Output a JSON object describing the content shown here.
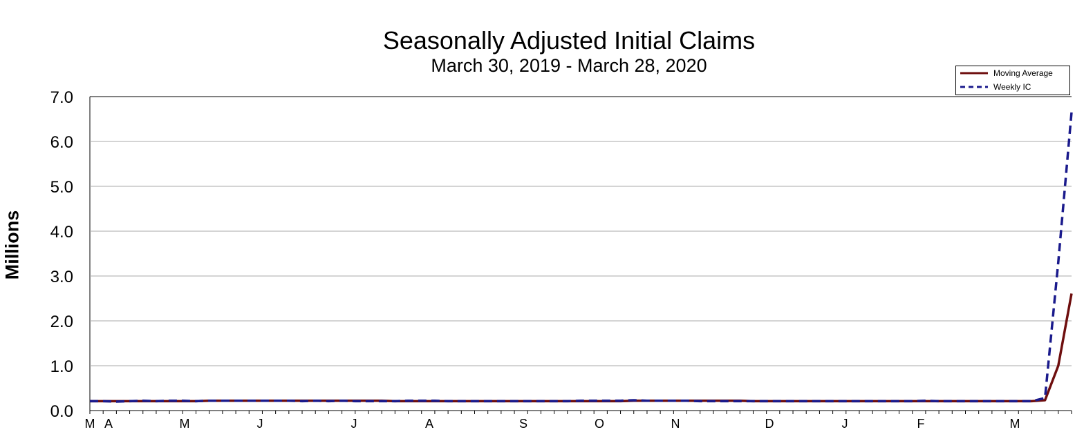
{
  "title": "Seasonally Adjusted Initial Claims",
  "subtitle": "March 30, 2019 - March 28, 2020",
  "colors": {
    "moving_average": "#6e0e0e",
    "weekly": "#1a1a8c",
    "grid": "#a8a8a8"
  },
  "chart_data": {
    "type": "line",
    "title": "Seasonally Adjusted Initial Claims",
    "subtitle": "March 30, 2019 - March 28, 2020",
    "ylabel": "Millions",
    "xlabel": "",
    "ylim": [
      0,
      7.0
    ],
    "y_ticks": [
      "0.0",
      "1.0",
      "2.0",
      "3.0",
      "4.0",
      "5.0",
      "6.0",
      "7.0"
    ],
    "x_tick_labels": [
      "M",
      "A",
      "M",
      "J",
      "J",
      "A",
      "S",
      "O",
      "N",
      "D",
      "J",
      "F",
      "M"
    ],
    "grid": true,
    "legend_position": "top-right",
    "series": [
      {
        "name": "Moving Average",
        "style": "solid",
        "values": [
          0.21,
          0.21,
          0.21,
          0.21,
          0.21,
          0.21,
          0.21,
          0.21,
          0.21,
          0.22,
          0.22,
          0.22,
          0.22,
          0.22,
          0.22,
          0.22,
          0.22,
          0.22,
          0.22,
          0.22,
          0.22,
          0.22,
          0.22,
          0.21,
          0.21,
          0.21,
          0.21,
          0.21,
          0.21,
          0.21,
          0.21,
          0.21,
          0.21,
          0.21,
          0.21,
          0.21,
          0.21,
          0.21,
          0.21,
          0.21,
          0.21,
          0.22,
          0.22,
          0.22,
          0.22,
          0.22,
          0.22,
          0.22,
          0.22,
          0.22,
          0.21,
          0.21,
          0.21,
          0.21,
          0.21,
          0.21,
          0.21,
          0.21,
          0.21,
          0.21,
          0.21,
          0.21,
          0.21,
          0.21,
          0.21,
          0.21,
          0.21,
          0.21,
          0.21,
          0.21,
          0.21,
          0.21,
          0.23,
          1.0,
          2.61
        ]
      },
      {
        "name": "Weekly IC",
        "style": "dashed",
        "values": [
          0.21,
          0.21,
          0.2,
          0.21,
          0.22,
          0.21,
          0.22,
          0.22,
          0.21,
          0.22,
          0.22,
          0.22,
          0.22,
          0.22,
          0.22,
          0.22,
          0.21,
          0.22,
          0.21,
          0.22,
          0.21,
          0.21,
          0.21,
          0.21,
          0.22,
          0.22,
          0.22,
          0.21,
          0.21,
          0.21,
          0.21,
          0.21,
          0.21,
          0.21,
          0.21,
          0.21,
          0.21,
          0.22,
          0.22,
          0.22,
          0.22,
          0.23,
          0.22,
          0.22,
          0.22,
          0.22,
          0.21,
          0.21,
          0.21,
          0.21,
          0.21,
          0.21,
          0.21,
          0.21,
          0.21,
          0.21,
          0.21,
          0.21,
          0.21,
          0.21,
          0.21,
          0.21,
          0.21,
          0.22,
          0.21,
          0.21,
          0.21,
          0.21,
          0.21,
          0.21,
          0.21,
          0.21,
          0.28,
          3.31,
          6.65
        ]
      }
    ]
  }
}
